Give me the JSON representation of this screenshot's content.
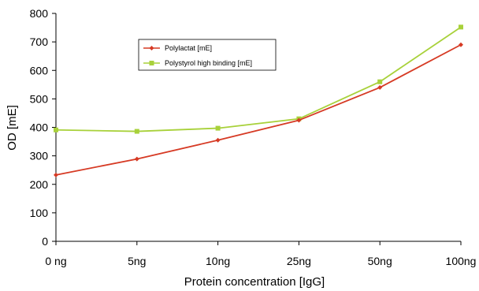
{
  "chart_data": {
    "type": "line",
    "title": "",
    "xlabel": "Protein concentration [IgG]",
    "ylabel": "OD [mE]",
    "categories": [
      "0 ng",
      "5ng",
      "10ng",
      "25ng",
      "50ng",
      "100ng"
    ],
    "ylim": [
      0,
      800
    ],
    "yticks": [
      0,
      100,
      200,
      300,
      400,
      500,
      600,
      700,
      800
    ],
    "grid": false,
    "legend_position": "top-center",
    "series": [
      {
        "name": "Polylactat [mE]",
        "values": [
          233,
          289,
          355,
          425,
          540,
          690
        ],
        "color": "#d63a24",
        "marker": "diamond"
      },
      {
        "name": "Polystyrol high binding [mE]",
        "values": [
          391,
          386,
          397,
          430,
          560,
          752
        ],
        "color": "#a8d13a",
        "marker": "square"
      }
    ]
  }
}
